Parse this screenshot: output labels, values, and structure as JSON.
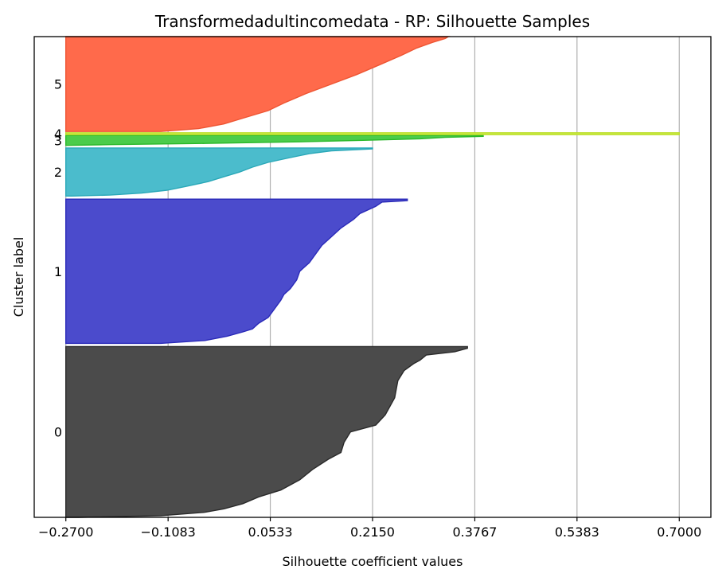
{
  "chart_data": {
    "type": "area",
    "title": "Transformedadultincomedata - RP: Silhouette Samples",
    "xlabel": "Silhouette coefficient values",
    "ylabel": "Cluster label",
    "xlim": [
      -0.32,
      0.75
    ],
    "x_ticks": [
      -0.27,
      -0.1083,
      0.0533,
      0.215,
      0.3767,
      0.5383,
      0.7
    ],
    "x_tick_labels": [
      "−0.2700",
      "−0.1083",
      "0.0533",
      "0.2150",
      "0.3767",
      "0.5383",
      "0.7000"
    ],
    "ylim": [
      0,
      760
    ],
    "grid": "vertical",
    "baseline_x": -0.27,
    "clusters": [
      {
        "label": "0",
        "color": "#4b4b4b",
        "edge": "#2a2a2a",
        "y_range": [
          0,
          270
        ],
        "profile": [
          [
            0.0,
            0.365
          ],
          [
            0.01,
            0.365
          ],
          [
            0.03,
            0.345
          ],
          [
            0.05,
            0.3
          ],
          [
            0.08,
            0.29
          ],
          [
            0.1,
            0.28
          ],
          [
            0.14,
            0.265
          ],
          [
            0.2,
            0.255
          ],
          [
            0.3,
            0.25
          ],
          [
            0.4,
            0.235
          ],
          [
            0.46,
            0.22
          ],
          [
            0.5,
            0.18
          ],
          [
            0.56,
            0.17
          ],
          [
            0.62,
            0.165
          ],
          [
            0.66,
            0.145
          ],
          [
            0.72,
            0.12
          ],
          [
            0.78,
            0.1
          ],
          [
            0.84,
            0.07
          ],
          [
            0.88,
            0.035
          ],
          [
            0.92,
            0.01
          ],
          [
            0.95,
            -0.02
          ],
          [
            0.97,
            -0.05
          ],
          [
            0.99,
            -0.12
          ],
          [
            1.0,
            -0.25
          ]
        ]
      },
      {
        "label": "1",
        "color": "#4b4bcc",
        "edge": "#2a2ab8",
        "y_range": [
          275,
          503
        ],
        "profile": [
          [
            0.0,
            0.27
          ],
          [
            0.01,
            0.27
          ],
          [
            0.02,
            0.23
          ],
          [
            0.05,
            0.22
          ],
          [
            0.1,
            0.195
          ],
          [
            0.14,
            0.185
          ],
          [
            0.2,
            0.165
          ],
          [
            0.26,
            0.15
          ],
          [
            0.32,
            0.135
          ],
          [
            0.38,
            0.125
          ],
          [
            0.44,
            0.115
          ],
          [
            0.5,
            0.1
          ],
          [
            0.56,
            0.095
          ],
          [
            0.62,
            0.085
          ],
          [
            0.66,
            0.075
          ],
          [
            0.7,
            0.07
          ],
          [
            0.76,
            0.06
          ],
          [
            0.82,
            0.05
          ],
          [
            0.86,
            0.035
          ],
          [
            0.9,
            0.025
          ],
          [
            0.92,
            0.01
          ],
          [
            0.95,
            -0.015
          ],
          [
            0.98,
            -0.05
          ],
          [
            1.0,
            -0.12
          ]
        ]
      },
      {
        "label": "2",
        "color": "#4bbccc",
        "edge": "#2aa8b8",
        "y_range": [
          508,
          584
        ],
        "profile": [
          [
            0.0,
            0.215
          ],
          [
            0.02,
            0.215
          ],
          [
            0.06,
            0.15
          ],
          [
            0.12,
            0.115
          ],
          [
            0.2,
            0.085
          ],
          [
            0.3,
            0.05
          ],
          [
            0.4,
            0.025
          ],
          [
            0.5,
            0.005
          ],
          [
            0.6,
            -0.02
          ],
          [
            0.7,
            -0.045
          ],
          [
            0.8,
            -0.08
          ],
          [
            0.88,
            -0.11
          ],
          [
            0.94,
            -0.15
          ],
          [
            0.98,
            -0.2
          ],
          [
            1.0,
            -0.26
          ]
        ]
      },
      {
        "label": "3",
        "color": "#4bcc4b",
        "edge": "#2ab82a",
        "y_range": [
          588,
          604
        ],
        "profile": [
          [
            0.0,
            0.39
          ],
          [
            0.1,
            0.39
          ],
          [
            0.2,
            0.33
          ],
          [
            0.35,
            0.29
          ],
          [
            0.5,
            0.2
          ],
          [
            0.65,
            0.1
          ],
          [
            0.8,
            -0.05
          ],
          [
            0.92,
            -0.2
          ],
          [
            1.0,
            -0.27
          ]
        ]
      },
      {
        "label": "4",
        "color": "#ccee4b",
        "edge": "#bbdd2a",
        "y_range": [
          605,
          608
        ],
        "profile": [
          [
            0.0,
            0.7
          ],
          [
            1.0,
            0.7
          ]
        ]
      },
      {
        "label": "5",
        "color": "#ff6a4b",
        "edge": "#ee5533",
        "y_range": [
          610,
          760
        ],
        "profile": [
          [
            0.0,
            0.335
          ],
          [
            0.02,
            0.33
          ],
          [
            0.06,
            0.31
          ],
          [
            0.12,
            0.285
          ],
          [
            0.2,
            0.26
          ],
          [
            0.3,
            0.225
          ],
          [
            0.4,
            0.19
          ],
          [
            0.5,
            0.15
          ],
          [
            0.6,
            0.11
          ],
          [
            0.7,
            0.075
          ],
          [
            0.78,
            0.05
          ],
          [
            0.86,
            0.01
          ],
          [
            0.92,
            -0.02
          ],
          [
            0.97,
            -0.06
          ],
          [
            1.0,
            -0.12
          ]
        ]
      }
    ]
  }
}
